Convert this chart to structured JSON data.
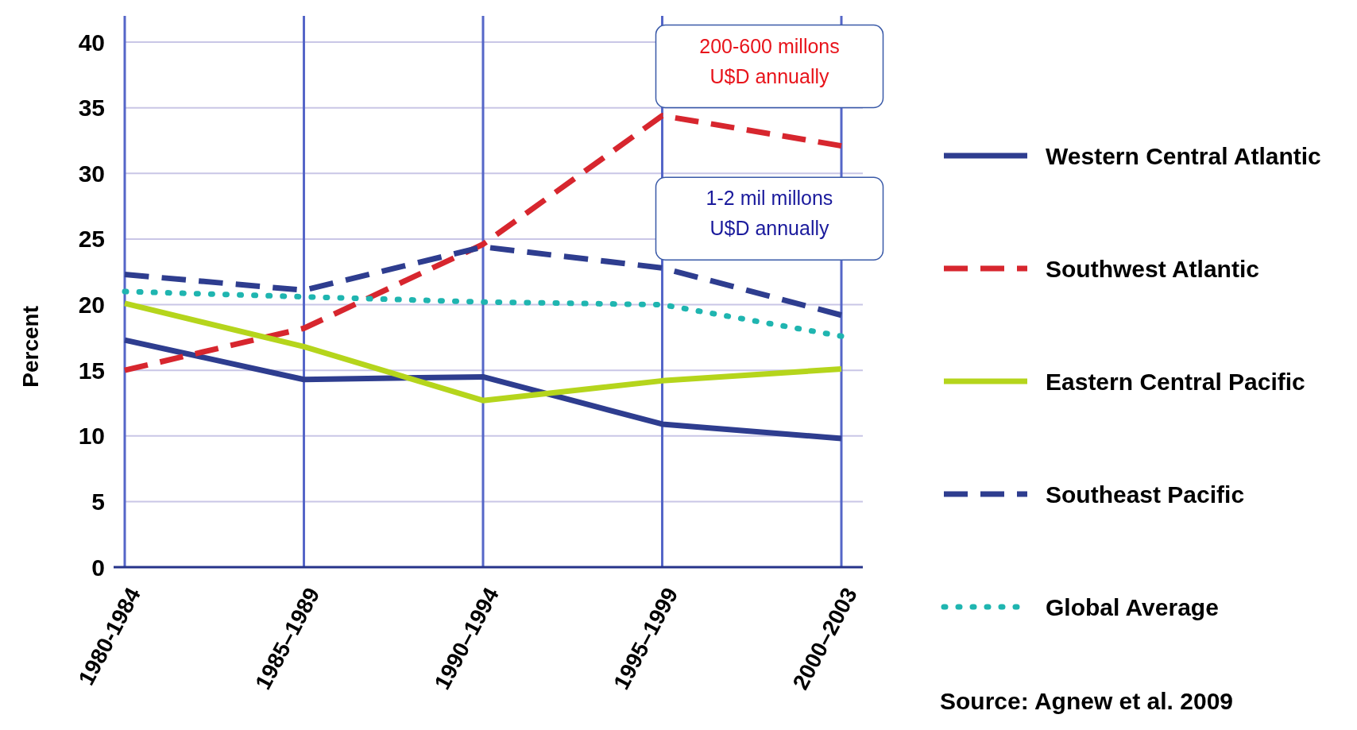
{
  "chart_data": {
    "type": "line",
    "ylabel": "Percent",
    "categories": [
      "1980-1984",
      "1985–1989",
      "1990–1994",
      "1995–1999",
      "2000–2003"
    ],
    "ylim": [
      0,
      42
    ],
    "yticks": [
      0,
      5,
      10,
      15,
      20,
      25,
      30,
      35,
      40
    ],
    "grid": true,
    "legend": "right",
    "series": [
      {
        "name": "Western Central Atlantic",
        "color": "#2e3d8f",
        "line_style": "solid",
        "values": [
          17.3,
          14.3,
          14.5,
          10.9,
          9.8
        ]
      },
      {
        "name": "Southwest Atlantic",
        "color": "#d7262e",
        "line_style": "dashed",
        "values": [
          15,
          18.2,
          24.6,
          34.4,
          32.1
        ]
      },
      {
        "name": "Eastern Central Pacific",
        "color": "#b5d51c",
        "line_style": "solid",
        "values": [
          20.1,
          16.8,
          12.7,
          14.2,
          15.1
        ]
      },
      {
        "name": "Southeast Pacific",
        "color": "#2e3d8f",
        "line_style": "dashed",
        "values": [
          22.3,
          21.1,
          24.4,
          22.8,
          19.2
        ]
      },
      {
        "name": "Global Average",
        "color": "#1fb5b0",
        "line_style": "dotted",
        "values": [
          21,
          20.6,
          20.2,
          20,
          17.6
        ]
      }
    ],
    "annotations": [
      {
        "text": "200-600 millons\nU$D annually",
        "x": "1995–1999",
        "y": 34.4
      },
      {
        "text": "1-2 mil millons\nU$D annually",
        "x": "1995–1999",
        "y": 22.8
      },
      "Source: Agnew et al. 2009"
    ]
  }
}
